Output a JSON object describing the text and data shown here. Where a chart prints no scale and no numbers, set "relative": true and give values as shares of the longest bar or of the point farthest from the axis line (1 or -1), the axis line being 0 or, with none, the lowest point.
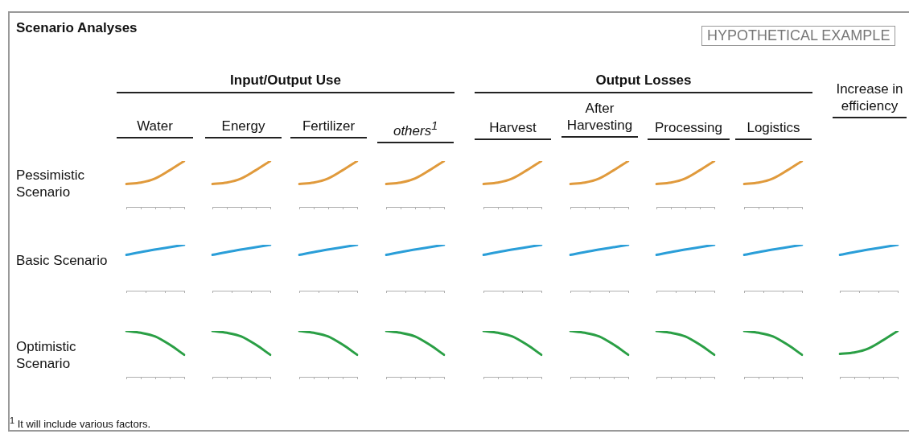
{
  "chart_data": [
    {
      "type": "other",
      "title": "Scenario Analyses",
      "annotations": [
        "HYPOTHETICAL EXAMPLE",
        "Input/Output Use",
        "Output Losses",
        "Increase in efficiency",
        "Water",
        "Energy",
        "Fertilizer",
        "others$^{1}$",
        "Harvest",
        "After Harvesting",
        "Processing",
        "Logistics",
        "Pessimistic Scenario",
        "Basic Scenario",
        "Optimistic Scenario",
        "$^{1}$ It will include various factors."
      ]
    },
    {
      "type": "line",
      "relative": true,
      "tick_labels": false,
      "categories": [
        null,
        null,
        null,
        null,
        null
      ],
      "color": "#e09a3c",
      "values": [
        0.5,
        0.53,
        0.62,
        0.8,
        1
      ]
    },
    {
      "type": "line",
      "relative": true,
      "tick_labels": false,
      "categories": [
        null,
        null,
        null,
        null,
        null
      ],
      "color": "#e09a3c",
      "values": [
        0.5,
        0.53,
        0.62,
        0.8,
        1
      ]
    },
    {
      "type": "line",
      "relative": true,
      "tick_labels": false,
      "categories": [
        null,
        null,
        null,
        null,
        null
      ],
      "color": "#e09a3c",
      "values": [
        0.5,
        0.53,
        0.62,
        0.8,
        1
      ]
    },
    {
      "type": "line",
      "relative": true,
      "tick_labels": false,
      "categories": [
        null,
        null,
        null,
        null,
        null
      ],
      "color": "#e09a3c",
      "values": [
        0.5,
        0.53,
        0.62,
        0.8,
        1
      ]
    },
    {
      "type": "line",
      "relative": true,
      "tick_labels": false,
      "categories": [
        null,
        null,
        null,
        null,
        null
      ],
      "color": "#e09a3c",
      "values": [
        0.5,
        0.53,
        0.62,
        0.8,
        1
      ]
    },
    {
      "type": "line",
      "relative": true,
      "tick_labels": false,
      "categories": [
        null,
        null,
        null,
        null,
        null
      ],
      "color": "#e09a3c",
      "values": [
        0.5,
        0.53,
        0.62,
        0.8,
        1
      ]
    },
    {
      "type": "line",
      "relative": true,
      "tick_labels": false,
      "categories": [
        null,
        null,
        null,
        null,
        null
      ],
      "color": "#e09a3c",
      "values": [
        0.5,
        0.53,
        0.62,
        0.8,
        1
      ]
    },
    {
      "type": "line",
      "relative": true,
      "tick_labels": false,
      "categories": [
        null,
        null,
        null,
        null,
        null
      ],
      "color": "#e09a3c",
      "values": [
        0.5,
        0.53,
        0.62,
        0.8,
        1
      ]
    },
    {
      "type": "line",
      "relative": true,
      "tick_labels": false,
      "categories": [
        null,
        null,
        null,
        null
      ],
      "color": "#2a9ed8",
      "values": [
        0.78,
        0.86,
        0.93,
        1
      ]
    },
    {
      "type": "line",
      "relative": true,
      "tick_labels": false,
      "categories": [
        null,
        null,
        null,
        null
      ],
      "color": "#2a9ed8",
      "values": [
        0.78,
        0.86,
        0.93,
        1
      ]
    },
    {
      "type": "line",
      "relative": true,
      "tick_labels": false,
      "categories": [
        null,
        null,
        null,
        null
      ],
      "color": "#2a9ed8",
      "values": [
        0.78,
        0.86,
        0.93,
        1
      ]
    },
    {
      "type": "line",
      "relative": true,
      "tick_labels": false,
      "categories": [
        null,
        null,
        null,
        null
      ],
      "color": "#2a9ed8",
      "values": [
        0.78,
        0.86,
        0.93,
        1
      ]
    },
    {
      "type": "line",
      "relative": true,
      "tick_labels": false,
      "categories": [
        null,
        null,
        null,
        null
      ],
      "color": "#2a9ed8",
      "values": [
        0.78,
        0.86,
        0.93,
        1
      ]
    },
    {
      "type": "line",
      "relative": true,
      "tick_labels": false,
      "categories": [
        null,
        null,
        null,
        null
      ],
      "color": "#2a9ed8",
      "values": [
        0.78,
        0.86,
        0.93,
        1
      ]
    },
    {
      "type": "line",
      "relative": true,
      "tick_labels": false,
      "categories": [
        null,
        null,
        null,
        null
      ],
      "color": "#2a9ed8",
      "values": [
        0.78,
        0.86,
        0.93,
        1
      ]
    },
    {
      "type": "line",
      "relative": true,
      "tick_labels": false,
      "categories": [
        null,
        null,
        null,
        null
      ],
      "color": "#2a9ed8",
      "values": [
        0.78,
        0.86,
        0.93,
        1
      ]
    },
    {
      "type": "line",
      "relative": true,
      "tick_labels": false,
      "categories": [
        null,
        null,
        null,
        null
      ],
      "color": "#2a9ed8",
      "values": [
        0.78,
        0.86,
        0.93,
        1
      ]
    },
    {
      "type": "line",
      "relative": true,
      "tick_labels": false,
      "categories": [
        null,
        null,
        null,
        null,
        null
      ],
      "color": "#2a9f45",
      "values": [
        1,
        0.96,
        0.88,
        0.7,
        0.48
      ]
    },
    {
      "type": "line",
      "relative": true,
      "tick_labels": false,
      "categories": [
        null,
        null,
        null,
        null,
        null
      ],
      "color": "#2a9f45",
      "values": [
        1,
        0.96,
        0.88,
        0.7,
        0.48
      ]
    },
    {
      "type": "line",
      "relative": true,
      "tick_labels": false,
      "categories": [
        null,
        null,
        null,
        null,
        null
      ],
      "color": "#2a9f45",
      "values": [
        1,
        0.96,
        0.88,
        0.7,
        0.48
      ]
    },
    {
      "type": "line",
      "relative": true,
      "tick_labels": false,
      "categories": [
        null,
        null,
        null,
        null,
        null
      ],
      "color": "#2a9f45",
      "values": [
        1,
        0.96,
        0.88,
        0.7,
        0.48
      ]
    },
    {
      "type": "line",
      "relative": true,
      "tick_labels": false,
      "categories": [
        null,
        null,
        null,
        null,
        null
      ],
      "color": "#2a9f45",
      "values": [
        1,
        0.96,
        0.88,
        0.7,
        0.48
      ]
    },
    {
      "type": "line",
      "relative": true,
      "tick_labels": false,
      "categories": [
        null,
        null,
        null,
        null,
        null
      ],
      "color": "#2a9f45",
      "values": [
        1,
        0.96,
        0.88,
        0.7,
        0.48
      ]
    },
    {
      "type": "line",
      "relative": true,
      "tick_labels": false,
      "categories": [
        null,
        null,
        null,
        null,
        null
      ],
      "color": "#2a9f45",
      "values": [
        1,
        0.96,
        0.88,
        0.7,
        0.48
      ]
    },
    {
      "type": "line",
      "relative": true,
      "tick_labels": false,
      "categories": [
        null,
        null,
        null,
        null,
        null
      ],
      "color": "#2a9f45",
      "values": [
        1,
        0.96,
        0.88,
        0.7,
        0.48
      ]
    },
    {
      "type": "line",
      "relative": true,
      "tick_labels": false,
      "categories": [
        null,
        null,
        null,
        null,
        null
      ],
      "color": "#2a9f45",
      "values": [
        0.5,
        0.53,
        0.62,
        0.8,
        1
      ]
    }
  ]
}
